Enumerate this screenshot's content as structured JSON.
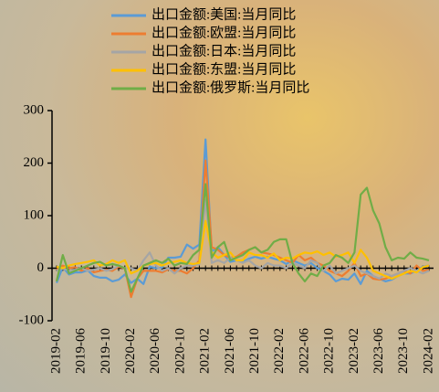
{
  "chart_data": {
    "type": "line",
    "categories": [
      "2019-02",
      null,
      null,
      null,
      "2019-06",
      null,
      null,
      null,
      "2019-10",
      null,
      null,
      null,
      "2020-02",
      null,
      null,
      null,
      "2020-06",
      null,
      null,
      null,
      "2020-10",
      null,
      null,
      null,
      "2021-02",
      null,
      null,
      null,
      "2021-06",
      null,
      null,
      null,
      "2021-10",
      null,
      null,
      null,
      "2022-02",
      null,
      null,
      null,
      "2022-06",
      null,
      null,
      null,
      "2022-10",
      null,
      null,
      null,
      "2023-02",
      null,
      null,
      null,
      "2023-06",
      null,
      null,
      null,
      "2023-10",
      null,
      null,
      null,
      "2024-02"
    ],
    "ylim": [
      -100,
      300
    ],
    "yticks": [
      -100,
      0,
      100,
      200,
      300
    ],
    "series": [
      {
        "name": "出口金额:美国:当月同比",
        "color": "#5b9bd5",
        "values": [
          -28,
          2,
          -12,
          -8,
          -8,
          -4,
          -15,
          -18,
          -18,
          -25,
          -22,
          -12,
          -28,
          -20,
          -30,
          3,
          0,
          1,
          20,
          20,
          22,
          45,
          37,
          45,
          245,
          32,
          40,
          25,
          12,
          15,
          12,
          18,
          22,
          18,
          22,
          18,
          15,
          8,
          15,
          10,
          5,
          10,
          0,
          -5,
          -12,
          -25,
          -20,
          -22,
          -10,
          -30,
          -5,
          -15,
          -20,
          -25,
          -22,
          -15,
          -10,
          -10,
          -5,
          3,
          5
        ]
      },
      {
        "name": "出口金额:欧盟:当月同比",
        "color": "#ed7d31",
        "values": [
          -3,
          5,
          0,
          2,
          -5,
          0,
          -8,
          -5,
          -3,
          -5,
          3,
          0,
          -55,
          -20,
          -5,
          -5,
          -5,
          -8,
          -2,
          -5,
          -5,
          -10,
          0,
          15,
          205,
          40,
          35,
          25,
          20,
          22,
          30,
          35,
          40,
          30,
          28,
          25,
          20,
          15,
          10,
          25,
          15,
          20,
          10,
          5,
          -5,
          -10,
          -15,
          -5,
          10,
          -15,
          -10,
          -20,
          -22,
          -20,
          -15,
          -10,
          -5,
          -10,
          5,
          -5,
          -3
        ]
      },
      {
        "name": "出口金额:日本:当月同比",
        "color": "#a5a5a5",
        "values": [
          -5,
          0,
          -5,
          -3,
          0,
          -5,
          -3,
          0,
          -5,
          -2,
          5,
          0,
          0,
          -5,
          15,
          30,
          5,
          -5,
          0,
          -10,
          0,
          5,
          5,
          8,
          130,
          10,
          15,
          10,
          20,
          15,
          10,
          15,
          5,
          0,
          10,
          5,
          5,
          0,
          10,
          5,
          0,
          15,
          10,
          -5,
          5,
          -10,
          -5,
          0,
          5,
          -5,
          -10,
          -15,
          -20,
          -10,
          -15,
          -10,
          -5,
          0,
          -5,
          -10,
          -5
        ]
      },
      {
        "name": "出口金额:东盟:当月同比",
        "color": "#ffc000",
        "values": [
          3,
          0,
          5,
          8,
          10,
          12,
          15,
          5,
          8,
          15,
          10,
          15,
          -10,
          -5,
          5,
          8,
          10,
          5,
          10,
          12,
          15,
          10,
          8,
          10,
          90,
          30,
          20,
          25,
          30,
          15,
          15,
          30,
          25,
          25,
          20,
          28,
          15,
          20,
          18,
          25,
          30,
          28,
          32,
          25,
          30,
          22,
          25,
          30,
          10,
          35,
          20,
          -5,
          -10,
          -15,
          -20,
          -15,
          -10,
          -5,
          -8,
          2,
          5
        ]
      },
      {
        "name": "出口金额:俄罗斯:当月同比",
        "color": "#70ad47",
        "values": [
          -25,
          25,
          -10,
          -5,
          0,
          5,
          10,
          12,
          5,
          8,
          5,
          0,
          -45,
          -20,
          5,
          10,
          15,
          10,
          18,
          5,
          10,
          8,
          25,
          35,
          160,
          20,
          40,
          50,
          15,
          20,
          25,
          35,
          40,
          30,
          35,
          50,
          55,
          55,
          10,
          -10,
          -25,
          -10,
          -15,
          5,
          10,
          25,
          20,
          10,
          30,
          140,
          153,
          110,
          85,
          40,
          15,
          20,
          18,
          30,
          20,
          18,
          15
        ]
      }
    ]
  }
}
